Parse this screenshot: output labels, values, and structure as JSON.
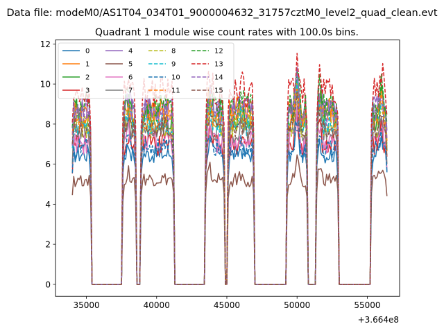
{
  "chart_data": {
    "type": "line",
    "suptitle": "Data file: modeM0/AS1T04_034T01_9000004632_31757cztM0_level2_quad_clean.evt",
    "title": "Quadrant 1 module wise count rates with 100.0s bins.",
    "xlabel": "",
    "ylabel": "",
    "x_offset_label": "+3.664e8",
    "xlim": [
      32800,
      57300
    ],
    "ylim": [
      -0.6,
      12.2
    ],
    "xticks": [
      35000,
      40000,
      45000,
      50000,
      55000
    ],
    "yticks": [
      0,
      2,
      4,
      6,
      8,
      10,
      12
    ],
    "ytick_labels": [
      "0",
      "2",
      "4",
      "6",
      "8",
      "10",
      "12"
    ],
    "grid": false,
    "legend_position": "top-left",
    "active_segments": [
      [
        34000,
        35300
      ],
      [
        37600,
        38500
      ],
      [
        38900,
        41200
      ],
      [
        43500,
        44800
      ],
      [
        45100,
        46900
      ],
      [
        49300,
        50700
      ],
      [
        51400,
        52900
      ],
      [
        55300,
        56400
      ]
    ],
    "series": [
      {
        "name": "0",
        "color": "#1f77b4",
        "style": "solid",
        "level": 6.5,
        "amp": 0.45
      },
      {
        "name": "1",
        "color": "#ff7f0e",
        "style": "solid",
        "level": 8.6,
        "amp": 0.7
      },
      {
        "name": "2",
        "color": "#2ca02c",
        "style": "solid",
        "level": 8.4,
        "amp": 0.8
      },
      {
        "name": "3",
        "color": "#d62728",
        "style": "solid",
        "level": 7.0,
        "amp": 0.6
      },
      {
        "name": "4",
        "color": "#9467bd",
        "style": "solid",
        "level": 8.8,
        "amp": 0.6
      },
      {
        "name": "5",
        "color": "#8c564b",
        "style": "solid",
        "level": 5.2,
        "amp": 0.35
      },
      {
        "name": "6",
        "color": "#e377c2",
        "style": "solid",
        "level": 7.1,
        "amp": 0.6
      },
      {
        "name": "7",
        "color": "#7f7f7f",
        "style": "solid",
        "level": 7.6,
        "amp": 0.55
      },
      {
        "name": "8",
        "color": "#bcbd22",
        "style": "dashed",
        "level": 7.9,
        "amp": 0.6
      },
      {
        "name": "9",
        "color": "#17becf",
        "style": "dashed",
        "level": 8.0,
        "amp": 0.6
      },
      {
        "name": "10",
        "color": "#1f77b4",
        "style": "dashed",
        "level": 6.8,
        "amp": 0.5
      },
      {
        "name": "11",
        "color": "#ff7f0e",
        "style": "dashed",
        "level": 8.3,
        "amp": 0.65
      },
      {
        "name": "12",
        "color": "#2ca02c",
        "style": "dashed",
        "level": 8.9,
        "amp": 0.7
      },
      {
        "name": "13",
        "color": "#d62728",
        "style": "dashed",
        "level": 9.6,
        "amp": 0.8
      },
      {
        "name": "14",
        "color": "#9467bd",
        "style": "dashed",
        "level": 8.6,
        "amp": 0.7
      },
      {
        "name": "15",
        "color": "#8c564b",
        "style": "dashed",
        "level": 7.8,
        "amp": 0.55
      }
    ]
  }
}
